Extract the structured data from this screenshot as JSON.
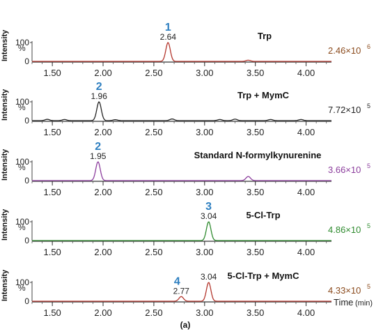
{
  "chart_data": [
    {
      "type": "line",
      "title": "Trp",
      "ylabel": "Intensity",
      "y_unit": "%",
      "y_ticks": [
        "100",
        "0"
      ],
      "ylim": [
        0,
        100
      ],
      "xlim": [
        1.3,
        4.25
      ],
      "x_ticks": [
        "1.50",
        "2.00",
        "2.50",
        "3.00",
        "3.50",
        "4.00"
      ],
      "color": "#b3352c",
      "scale_label": "2.46×10",
      "scale_exp": "6",
      "scale_color": "#8a4a1c",
      "peaks": [
        {
          "number": "1",
          "time": 2.64,
          "time_label": "2.64",
          "height": 100
        },
        {
          "time": 3.43,
          "height": 6
        }
      ]
    },
    {
      "type": "line",
      "title": "Trp + MymC",
      "ylabel": "Intensity",
      "y_unit": "%",
      "y_ticks": [
        "100",
        "0"
      ],
      "ylim": [
        0,
        100
      ],
      "xlim": [
        1.3,
        4.25
      ],
      "x_ticks": [
        "1.50",
        "2.00",
        "2.50",
        "3.00",
        "3.50",
        "4.00"
      ],
      "color": "#222222",
      "scale_label": "7.72×10",
      "scale_exp": "5",
      "scale_color": "#222222",
      "peaks": [
        {
          "number": "2",
          "time": 1.96,
          "time_label": "1.96",
          "height": 100
        },
        {
          "time": 1.45,
          "height": 7
        },
        {
          "time": 1.62,
          "height": 6
        },
        {
          "time": 2.12,
          "height": 5
        },
        {
          "time": 2.68,
          "height": 9
        },
        {
          "time": 3.15,
          "height": 6
        },
        {
          "time": 3.3,
          "height": 8
        },
        {
          "time": 3.65,
          "height": 6
        },
        {
          "time": 3.95,
          "height": 6
        }
      ]
    },
    {
      "type": "line",
      "title": "Standard N-formylkynurenine",
      "ylabel": "Intensity",
      "y_unit": "%",
      "y_ticks": [
        "100",
        "0"
      ],
      "ylim": [
        0,
        100
      ],
      "xlim": [
        1.3,
        4.25
      ],
      "x_ticks": [
        "1.50",
        "2.00",
        "2.50",
        "3.00",
        "3.50",
        "4.00"
      ],
      "color": "#8b3c9c",
      "scale_label": "3.66×10",
      "scale_exp": "5",
      "scale_color": "#8b3c9c",
      "peaks": [
        {
          "number": "2",
          "time": 1.95,
          "time_label": "1.95",
          "height": 100
        },
        {
          "time": 3.43,
          "height": 22
        }
      ]
    },
    {
      "type": "line",
      "title": "5-Cl-Trp",
      "ylabel": "Intensity",
      "y_unit": "%",
      "y_ticks": [
        "100",
        "0"
      ],
      "ylim": [
        0,
        100
      ],
      "xlim": [
        1.3,
        4.25
      ],
      "x_ticks": [
        "1.50",
        "2.00",
        "2.50",
        "3.00",
        "3.50",
        "4.00"
      ],
      "color": "#2e8a2e",
      "scale_label": "4.86×10",
      "scale_exp": "5",
      "scale_color": "#2e8a2e",
      "peaks": [
        {
          "number": "3",
          "time": 3.04,
          "time_label": "3.04",
          "height": 100
        }
      ]
    },
    {
      "type": "line",
      "title": "5-Cl-Trp + MymC",
      "ylabel": "Intensity",
      "y_unit": "%",
      "y_ticks": [
        "100",
        "0"
      ],
      "ylim": [
        0,
        100
      ],
      "xlim": [
        1.3,
        4.25
      ],
      "x_ticks": [
        "1.50",
        "2.00",
        "2.50",
        "3.00",
        "3.50",
        "4.00"
      ],
      "xlabel": "Time",
      "xlabel_unit": "(min)",
      "color": "#b3352c",
      "scale_label": "4.33×10",
      "scale_exp": "5",
      "scale_color": "#8a4a1c",
      "peaks": [
        {
          "number": "4",
          "time": 2.77,
          "time_label": "2.77",
          "height": 25
        },
        {
          "time": 3.04,
          "time_label": "3.04",
          "height": 100
        }
      ]
    }
  ],
  "peak_number_color": "#2e7fc0",
  "figure_label": "(a)"
}
